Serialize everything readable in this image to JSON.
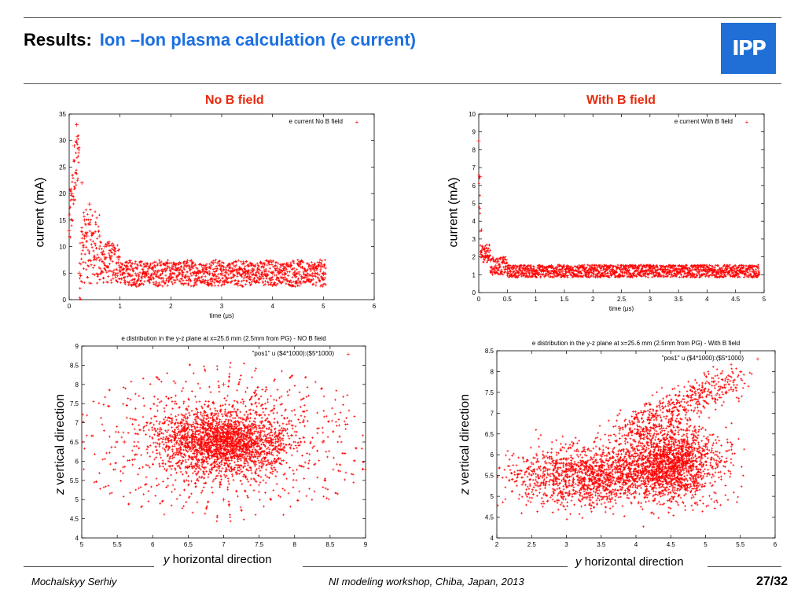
{
  "header": {
    "prefix": "Results:",
    "title": "Ion –Ion plasma calculation (e current)",
    "logo_text": "IPP"
  },
  "panels": {
    "left_title": "No B field",
    "right_title": "With B field"
  },
  "side_labels": {
    "current": "current (mA)",
    "z_prefix": "z",
    "z_rest": " vertical direction",
    "y_prefix": "y",
    "y_rest": " horizontal direction"
  },
  "footer": {
    "author": "Mochalskyy Serhiy",
    "event": "NI modeling workshop,  Chiba, Japan, 2013",
    "page": "27/32"
  },
  "colors": {
    "title_blue": "#1a6fe0",
    "panel_red": "#e8290b",
    "data_red": "#ff0000",
    "logo_blue": "#1f6fd6"
  },
  "chart_data": [
    {
      "type": "scatter",
      "id": "current_noB",
      "title": "",
      "xlabel": "time (μs)",
      "ylabel": "current (mA)",
      "legend": "e current No B field",
      "legend_position": "top-right",
      "xlim": [
        0,
        6
      ],
      "ylim": [
        0,
        35
      ],
      "xticks": [
        "0",
        "1",
        "2",
        "3",
        "4",
        "5",
        "6"
      ],
      "yticks": [
        "0",
        "5",
        "10",
        "15",
        "20",
        "25",
        "30",
        "35"
      ],
      "x": [
        0.0,
        0.05,
        0.1,
        0.15,
        0.2,
        0.25,
        0.3,
        0.35,
        0.4,
        0.5,
        0.6,
        0.7,
        0.8,
        1.0,
        1.5,
        2.0,
        2.5,
        3.0,
        3.5,
        4.0,
        4.5,
        5.0
      ],
      "y": [
        13,
        20,
        29,
        33,
        5,
        22,
        15,
        12,
        18,
        8,
        12,
        10,
        8,
        6,
        5,
        5,
        5,
        5,
        5,
        5,
        5,
        5
      ]
    },
    {
      "type": "scatter",
      "id": "current_withB",
      "title": "",
      "xlabel": "time (μs)",
      "ylabel": "current (mA)",
      "legend": "e current With B field",
      "legend_position": "top-right",
      "xlim": [
        0,
        5
      ],
      "ylim": [
        0,
        10
      ],
      "xticks": [
        "0",
        "0.5",
        "1",
        "1.5",
        "2",
        "2.5",
        "3",
        "3.5",
        "4",
        "4.5",
        "5"
      ],
      "yticks": [
        "0",
        "1",
        "2",
        "3",
        "4",
        "5",
        "6",
        "7",
        "8",
        "9",
        "10"
      ],
      "x": [
        0.0,
        0.02,
        0.05,
        0.1,
        0.15,
        0.2,
        0.3,
        0.5,
        1.0,
        2.0,
        3.0,
        4.0,
        4.9
      ],
      "y": [
        8.5,
        6.5,
        3.5,
        2.5,
        2.0,
        1.8,
        1.5,
        1.3,
        1.2,
        1.1,
        1.2,
        1.2,
        1.2
      ]
    },
    {
      "type": "scatter",
      "id": "dist_noB",
      "title": "e distribution in the y-z plane at x=25.6 mm (2.5mm from PG) - NO B field",
      "xlabel": "y horizontal direction",
      "ylabel": "z vertical direction",
      "legend": "\"pos1\" u ($4*1000):($5*1000)",
      "legend_position": "top-right",
      "xlim": [
        5,
        9
      ],
      "ylim": [
        4,
        9
      ],
      "xticks": [
        "5",
        "5.5",
        "6",
        "6.5",
        "7",
        "7.5",
        "8",
        "8.5",
        "9"
      ],
      "yticks": [
        "4",
        "4.5",
        "5",
        "5.5",
        "6",
        "6.5",
        "7",
        "7.5",
        "8",
        "8.5",
        "9"
      ],
      "x": [
        6.4,
        6.6,
        6.8,
        7.0,
        7.2,
        7.4,
        7.6,
        6.2,
        7.8,
        5.6,
        8.4,
        7.0,
        7.0
      ],
      "y": [
        6.5,
        6.7,
        6.3,
        6.5,
        6.7,
        6.4,
        6.5,
        6.6,
        6.4,
        6.5,
        6.5,
        8.0,
        5.0
      ]
    },
    {
      "type": "scatter",
      "id": "dist_withB",
      "title": "e distribution in the y-z plane at x=25.6 mm (2.5mm from PG) - With B field",
      "xlabel": "y horizontal direction",
      "ylabel": "z vertical direction",
      "legend": "\"pos1\" u ($4*1000):($5*1000)",
      "legend_position": "top-right",
      "xlim": [
        2,
        6
      ],
      "ylim": [
        4,
        8.5
      ],
      "xticks": [
        "2",
        "2.5",
        "3",
        "3.5",
        "4",
        "4.5",
        "5",
        "5.5",
        "6"
      ],
      "yticks": [
        "4",
        "4.5",
        "5",
        "5.5",
        "6",
        "6.5",
        "7",
        "7.5",
        "8",
        "8.5"
      ],
      "x": [
        2.5,
        3.0,
        3.5,
        4.0,
        4.3,
        4.5,
        4.8,
        5.0,
        4.2,
        3.8,
        5.3
      ],
      "y": [
        5.8,
        5.6,
        5.5,
        5.6,
        5.8,
        5.6,
        5.5,
        6.2,
        6.5,
        5.2,
        7.5
      ]
    }
  ]
}
